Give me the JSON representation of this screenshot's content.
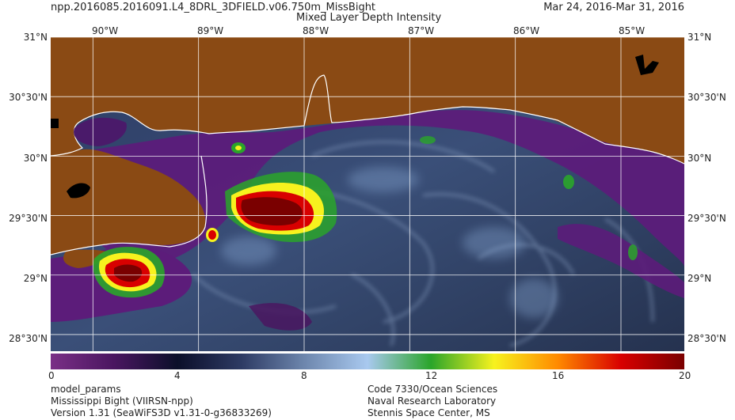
{
  "header": {
    "product": "npp.2016085.2016091.L4_8DRL_3DFIELD.v06.750m_MissBight",
    "title": "Mixed Layer Depth Intensity",
    "date_range": "Mar 24, 2016-Mar 31, 2016"
  },
  "map": {
    "lon_ticks": [
      "90°W",
      "89°W",
      "88°W",
      "87°W",
      "86°W",
      "85°W"
    ],
    "lat_ticks": [
      "31°N",
      "30°30'N",
      "30°N",
      "29°30'N",
      "29°N",
      "28°30'N"
    ],
    "lon_values": [
      -90,
      -89,
      -88,
      -87,
      -86,
      -85
    ],
    "lat_values": [
      31,
      30.5,
      30,
      29.5,
      29,
      28.5
    ],
    "extent": {
      "lon_min": -90.4,
      "lon_max": -84.4,
      "lat_min": 28.36,
      "lat_max": 31.0
    },
    "colors": {
      "land": "#8a4a14",
      "coast": "#ffffff",
      "grid": "#ffffff",
      "shallow": "#5a1a7a"
    }
  },
  "colorbar": {
    "min": 0,
    "max": 20,
    "tick_values": [
      0,
      4,
      8,
      12,
      16,
      20
    ],
    "tick_labels": [
      "0",
      "4",
      "8",
      "12",
      "16",
      "20"
    ],
    "stops": [
      "#7a2f86",
      "#4a1660",
      "#0b0f2a",
      "#2d3a63",
      "#6d86ad",
      "#a9c9ef",
      "#2aa52a",
      "#f7f21e",
      "#ff8a00",
      "#d80000",
      "#7a0000"
    ]
  },
  "footer": {
    "left": [
      "model_params",
      "Mississippi Bight (VIIRSN-npp)",
      "Version 1.31 (SeaWiFS3D v1.31-0-g36833269)"
    ],
    "right": [
      "Code 7330/Ocean Sciences",
      "Naval Research Laboratory",
      "Stennis Space Center, MS"
    ]
  }
}
